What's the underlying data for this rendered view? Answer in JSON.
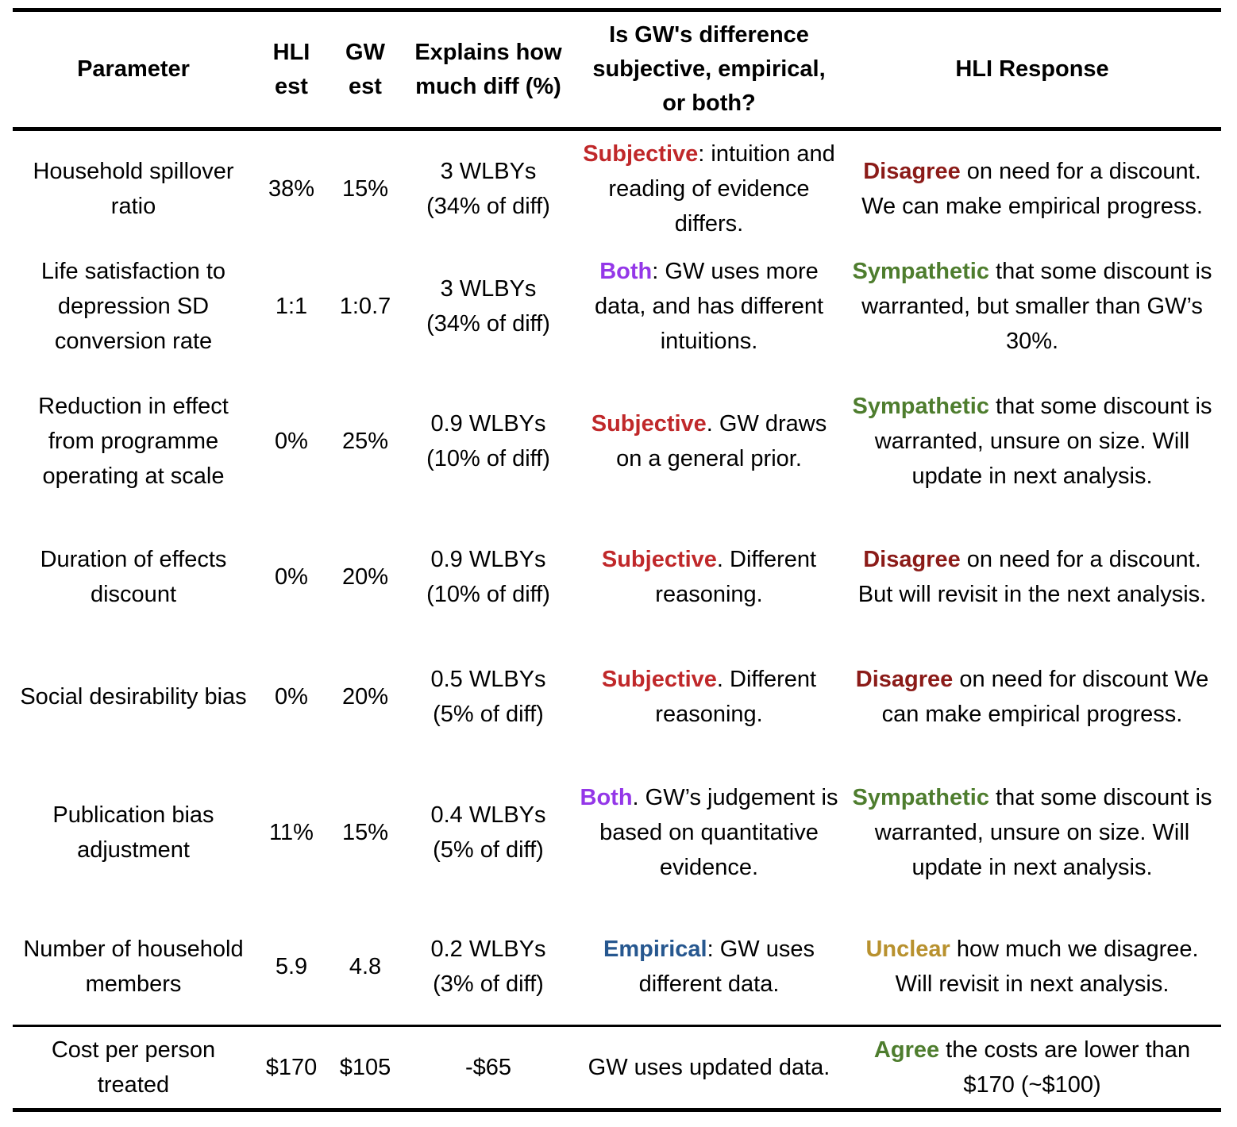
{
  "colors": {
    "Subjective": "#c0282a",
    "Both": "#9437e8",
    "Empirical": "#26578f",
    "Disagree": "#8b1b18",
    "Sympathetic": "#4e7d2e",
    "Unclear": "#b8912e",
    "Agree": "#4e7d2e"
  },
  "header": {
    "parameter": "Parameter",
    "hli_est": "HLI est",
    "gw_est": "GW est",
    "explains": "Explains how much diff (%)",
    "difference_type": "Is GW's difference subjective, empirical, or both?",
    "hli_response": "HLI Response"
  },
  "rows": [
    {
      "parameter": "Household spillover ratio",
      "hli_est": "38%",
      "gw_est": "15%",
      "explains": [
        "3 WLBYs",
        "(34% of diff)"
      ],
      "difference": {
        "keyword": "Subjective",
        "text": ": intuition and reading of evidence differs."
      },
      "response": {
        "keyword": "Disagree",
        "text": " on need for a discount. We can make empirical progress."
      }
    },
    {
      "parameter": "Life satisfaction to depression SD conversion rate",
      "hli_est": "1:1",
      "gw_est": "1:0.7",
      "explains": [
        "3 WLBYs",
        "(34% of diff)"
      ],
      "difference": {
        "keyword": "Both",
        "text": ": GW uses more data, and has different intuitions."
      },
      "response": {
        "keyword": "Sympathetic",
        "text": " that some discount is warranted, but smaller than GW’s 30%."
      }
    },
    {
      "parameter": "Reduction in effect from programme operating at scale",
      "hli_est": "0%",
      "gw_est": "25%",
      "explains": [
        "0.9 WLBYs",
        "(10% of diff)"
      ],
      "difference": {
        "keyword": "Subjective",
        "text": ". GW draws on a general prior."
      },
      "response": {
        "keyword": "Sympathetic",
        "text": " that some discount is warranted, unsure on size. Will update in next analysis."
      }
    },
    {
      "parameter": "Duration of effects discount",
      "hli_est": "0%",
      "gw_est": "20%",
      "explains": [
        "0.9 WLBYs",
        "(10% of diff)"
      ],
      "difference": {
        "keyword": "Subjective",
        "text": ". Different reasoning."
      },
      "response": {
        "keyword": "Disagree",
        "text": " on need for a discount. But will revisit in the next analysis."
      }
    },
    {
      "parameter": "Social desirability bias",
      "hli_est": "0%",
      "gw_est": "20%",
      "explains": [
        "0.5 WLBYs",
        "(5% of diff)"
      ],
      "difference": {
        "keyword": "Subjective",
        "text": ". Different reasoning."
      },
      "response": {
        "keyword": "Disagree",
        "text": " on need for discount We can make empirical progress."
      }
    },
    {
      "parameter": "Publication bias adjustment",
      "hli_est": "11%",
      "gw_est": "15%",
      "explains": [
        "0.4 WLBYs",
        "(5% of diff)"
      ],
      "difference": {
        "keyword": "Both",
        "text": ". GW’s judgement is based on quantitative evidence."
      },
      "response": {
        "keyword": "Sympathetic",
        "text": " that some discount is warranted, unsure on size. Will update in next analysis."
      }
    },
    {
      "parameter": "Number of household members",
      "hli_est": "5.9",
      "gw_est": "4.8",
      "explains": [
        "0.2 WLBYs",
        "(3% of diff)"
      ],
      "difference": {
        "keyword": "Empirical",
        "text": ": GW uses different data."
      },
      "response": {
        "keyword": "Unclear",
        "text": " how much we disagree. Will revisit in next analysis."
      }
    }
  ],
  "total": {
    "parameter": "Cost per person treated",
    "hli_est": "$170",
    "gw_est": "$105",
    "explains": "-$65",
    "difference": "GW uses updated data.",
    "response": {
      "keyword": "Agree",
      "text": " the costs are lower than $170 (~$100)"
    }
  }
}
